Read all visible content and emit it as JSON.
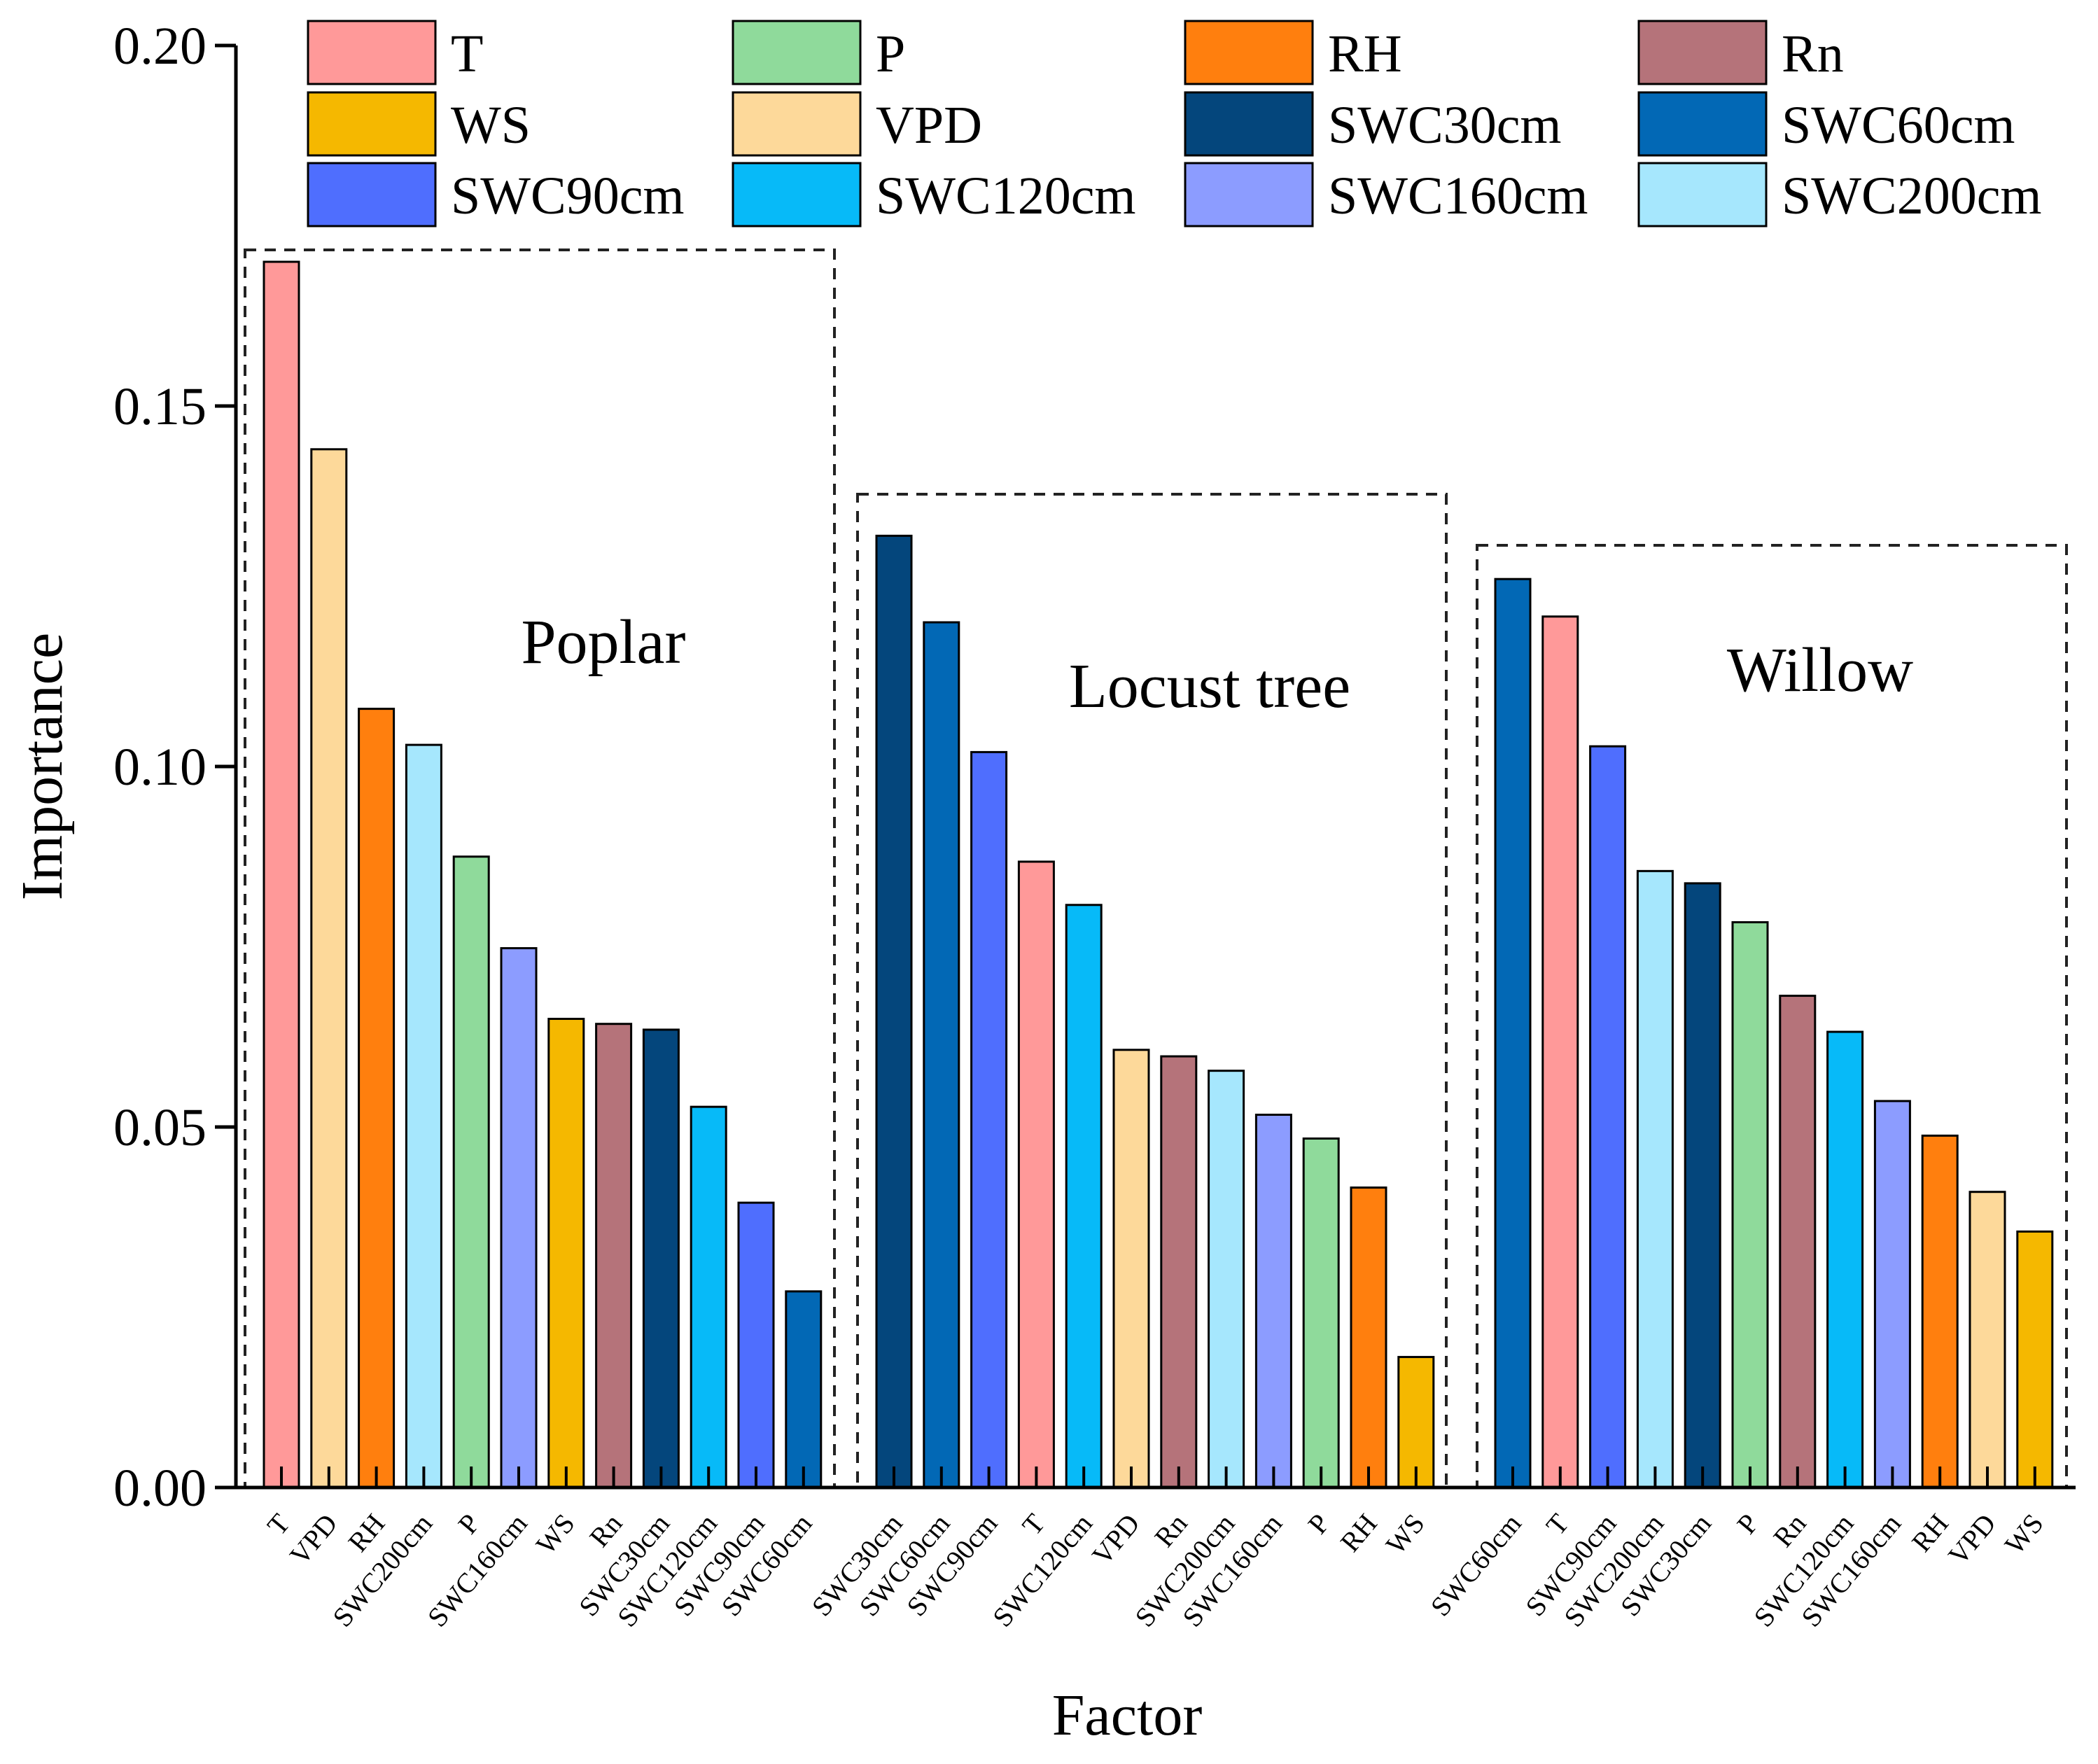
{
  "chart_data": {
    "type": "bar",
    "xlabel": "Factor",
    "ylabel": "Importance",
    "ylim": [
      0,
      0.2
    ],
    "yticks": [
      "0.00",
      "0.05",
      "0.10",
      "0.15",
      "0.20"
    ],
    "colors": {
      "T": "#FF9999",
      "P": "#8FDA9B",
      "RH": "#FF7F0E",
      "Rn": "#B5737A",
      "WS": "#F5B800",
      "VPD": "#FDD99A",
      "SWC30cm": "#04467C",
      "SWC60cm": "#0268B5",
      "SWC90cm": "#4F6EFE",
      "SWC120cm": "#07BAF8",
      "SWC160cm": "#8C9CFF",
      "SWC200cm": "#A6E7FD"
    },
    "legend": [
      "T",
      "P",
      "RH",
      "Rn",
      "WS",
      "VPD",
      "SWC30cm",
      "SWC60cm",
      "SWC90cm",
      "SWC120cm",
      "SWC160cm",
      "SWC200cm"
    ],
    "groups": [
      {
        "name": "Poplar",
        "categories": [
          "T",
          "VPD",
          "RH",
          "SWC200cm",
          "P",
          "SWC160cm",
          "WS",
          "Rn",
          "SWC30cm",
          "SWC120cm",
          "SWC90cm",
          "SWC60cm"
        ],
        "values": [
          0.17,
          0.144,
          0.108,
          0.103,
          0.0875,
          0.0748,
          0.065,
          0.0643,
          0.0635,
          0.0528,
          0.0395,
          0.0272
        ]
      },
      {
        "name": "Locust tree",
        "categories": [
          "SWC30cm",
          "SWC60cm",
          "SWC90cm",
          "T",
          "SWC120cm",
          "VPD",
          "Rn",
          "SWC200cm",
          "SWC160cm",
          "P",
          "RH",
          "WS"
        ],
        "values": [
          0.132,
          0.12,
          0.102,
          0.0868,
          0.0808,
          0.0607,
          0.0598,
          0.0578,
          0.0517,
          0.0484,
          0.0416,
          0.0181
        ]
      },
      {
        "name": "Willow",
        "categories": [
          "SWC60cm",
          "T",
          "SWC90cm",
          "SWC200cm",
          "SWC30cm",
          "P",
          "Rn",
          "SWC120cm",
          "SWC160cm",
          "RH",
          "VPD",
          "WS"
        ],
        "values": [
          0.126,
          0.1208,
          0.1028,
          0.0855,
          0.0838,
          0.0784,
          0.0682,
          0.0632,
          0.0536,
          0.0488,
          0.041,
          0.0355
        ]
      }
    ]
  }
}
